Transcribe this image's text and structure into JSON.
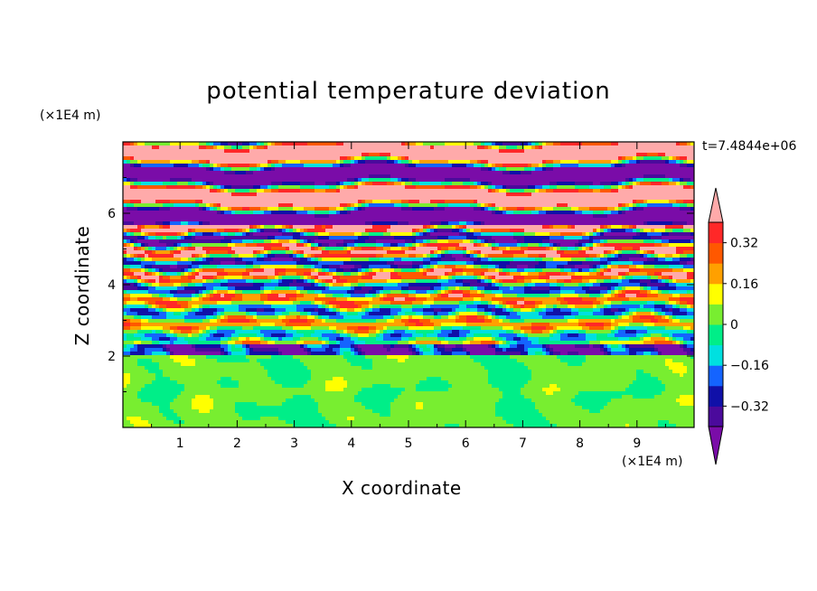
{
  "chart_data": {
    "type": "heatmap",
    "title": "potential temperature deviation",
    "xlabel": "X coordinate",
    "ylabel": "Z coordinate",
    "x_unit": "(×1E4 m)",
    "z_unit": "(×1E4 m)",
    "time_label": "t=7.4844e+06",
    "xlim": [
      0,
      10
    ],
    "ylim": [
      0,
      8
    ],
    "x_ticks": [
      "1",
      "2",
      "3",
      "4",
      "5",
      "6",
      "7",
      "8",
      "9"
    ],
    "y_ticks": [
      "2",
      "4",
      "6"
    ],
    "colorbar": {
      "levels": [
        -0.4,
        -0.32,
        -0.24,
        -0.16,
        -0.08,
        0,
        0.08,
        0.16,
        0.24,
        0.32,
        0.4
      ],
      "labels": [
        "0.32",
        "0.16",
        "0",
        "−0.16",
        "−0.32"
      ],
      "colors": [
        "#7a0ca8",
        "#4b0a9c",
        "#1010a8",
        "#1464ff",
        "#00e0e0",
        "#00ee88",
        "#78ee30",
        "#ffff00",
        "#ffa000",
        "#ff5800",
        "#ff2828",
        "#ffaaaa"
      ],
      "extend": "both"
    },
    "grid": false
  }
}
